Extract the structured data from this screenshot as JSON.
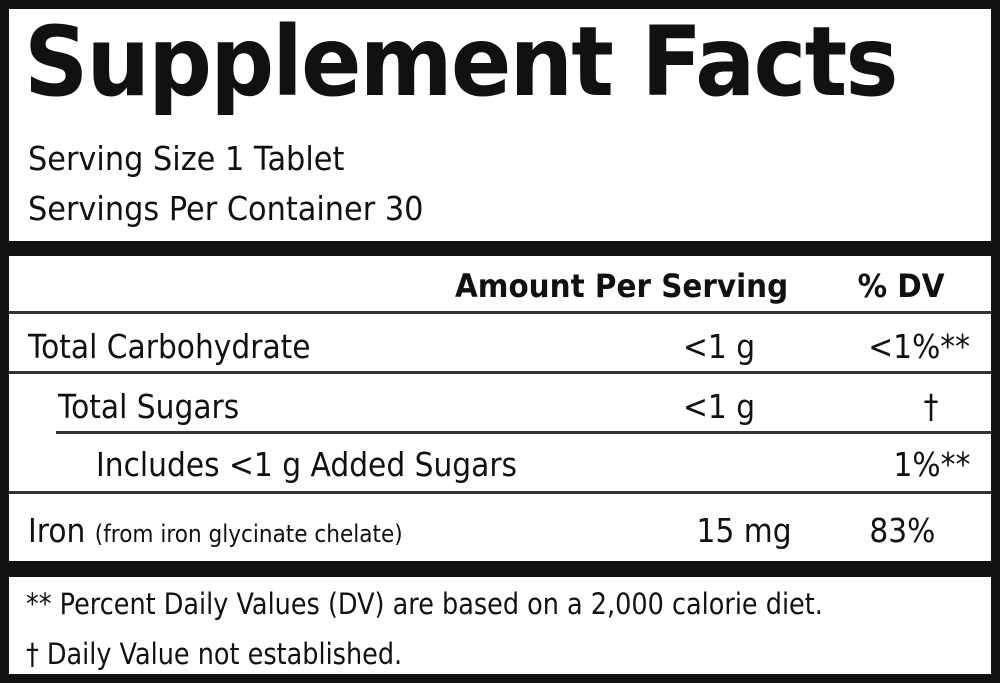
{
  "title": "Supplement Facts",
  "serving_size": "Serving Size 1 Tablet",
  "servings_per_container": "Servings Per Container 30",
  "header": {
    "amount": "Amount Per Serving",
    "dv": "% DV"
  },
  "rows": [
    {
      "name": "Total Carbohydrate",
      "amount": "<1 g",
      "dv": "<1%**"
    },
    {
      "name": "Total Sugars",
      "amount": "<1 g",
      "dv": "†"
    },
    {
      "name": "Includes <1 g Added Sugars",
      "amount": "",
      "dv": "1%**"
    },
    {
      "name": "Iron",
      "note": "(from iron glycinate chelate)",
      "amount": "15 mg",
      "dv": "83%"
    }
  ],
  "footnotes": [
    "** Percent Daily Values (DV) are based on a 2,000 calorie diet.",
    "† Daily Value not established."
  ]
}
